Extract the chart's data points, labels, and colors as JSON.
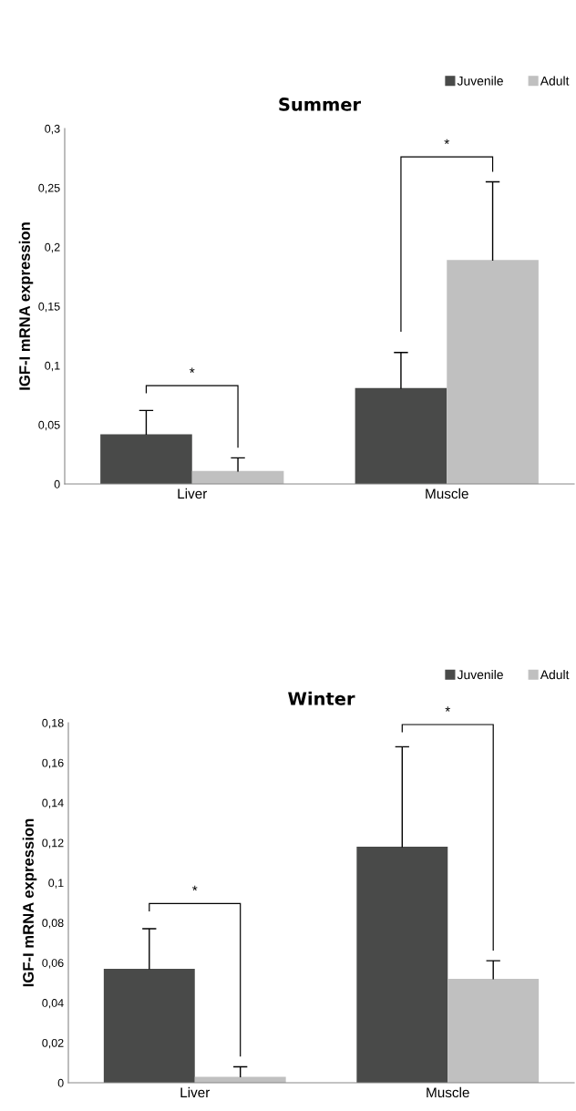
{
  "chart_data": [
    {
      "type": "bar",
      "title": "Summer",
      "ylabel": "IGF-I mRNA expression",
      "categories": [
        "Liver",
        "Muscle"
      ],
      "series": [
        {
          "name": "Juvenile",
          "color": "#494a49",
          "values": [
            0.042,
            0.081
          ],
          "errors": [
            [
              0.042,
              0.062
            ],
            [
              0.081,
              0.111
            ]
          ]
        },
        {
          "name": "Adult",
          "color": "#c0c0c0",
          "values": [
            0.011,
            0.189
          ],
          "errors": [
            [
              0.011,
              0.022
            ],
            [
              0.189,
              0.255
            ]
          ]
        }
      ],
      "ylim": [
        0,
        0.3
      ],
      "yticks": [
        {
          "value": 0,
          "label": "0"
        },
        {
          "value": 0.05,
          "label": "0,05"
        },
        {
          "value": 0.1,
          "label": "0,1"
        },
        {
          "value": 0.15,
          "label": "0,15"
        },
        {
          "value": 0.2,
          "label": "0,2"
        },
        {
          "value": 0.25,
          "label": "0,25"
        },
        {
          "value": 0.3,
          "label": "0,3"
        }
      ],
      "annotations": [
        "*",
        "*"
      ],
      "legend": "top right",
      "grid": false
    },
    {
      "type": "bar",
      "title": "Winter",
      "ylabel": "IGF-I mRNA expression",
      "categories": [
        "Liver",
        "Muscle"
      ],
      "series": [
        {
          "name": "Juvenile",
          "color": "#494a49",
          "values": [
            0.057,
            0.118
          ],
          "errors": [
            [
              0.057,
              0.077
            ],
            [
              0.118,
              0.168
            ]
          ]
        },
        {
          "name": "Adult",
          "color": "#c0c0c0",
          "values": [
            0.003,
            0.052
          ],
          "errors": [
            [
              0.003,
              0.008
            ],
            [
              0.052,
              0.061
            ]
          ]
        }
      ],
      "ylim": [
        0,
        0.18
      ],
      "yticks": [
        {
          "value": 0,
          "label": "0"
        },
        {
          "value": 0.02,
          "label": "0,02"
        },
        {
          "value": 0.04,
          "label": "0,04"
        },
        {
          "value": 0.06,
          "label": "0,06"
        },
        {
          "value": 0.08,
          "label": "0,08"
        },
        {
          "value": 0.1,
          "label": "0,1"
        },
        {
          "value": 0.12,
          "label": "0,12"
        },
        {
          "value": 0.14,
          "label": "0,14"
        },
        {
          "value": 0.16,
          "label": "0,16"
        },
        {
          "value": 0.18,
          "label": "0,18"
        }
      ],
      "annotations": [
        "*",
        "*"
      ],
      "legend": "top right",
      "grid": false
    }
  ]
}
